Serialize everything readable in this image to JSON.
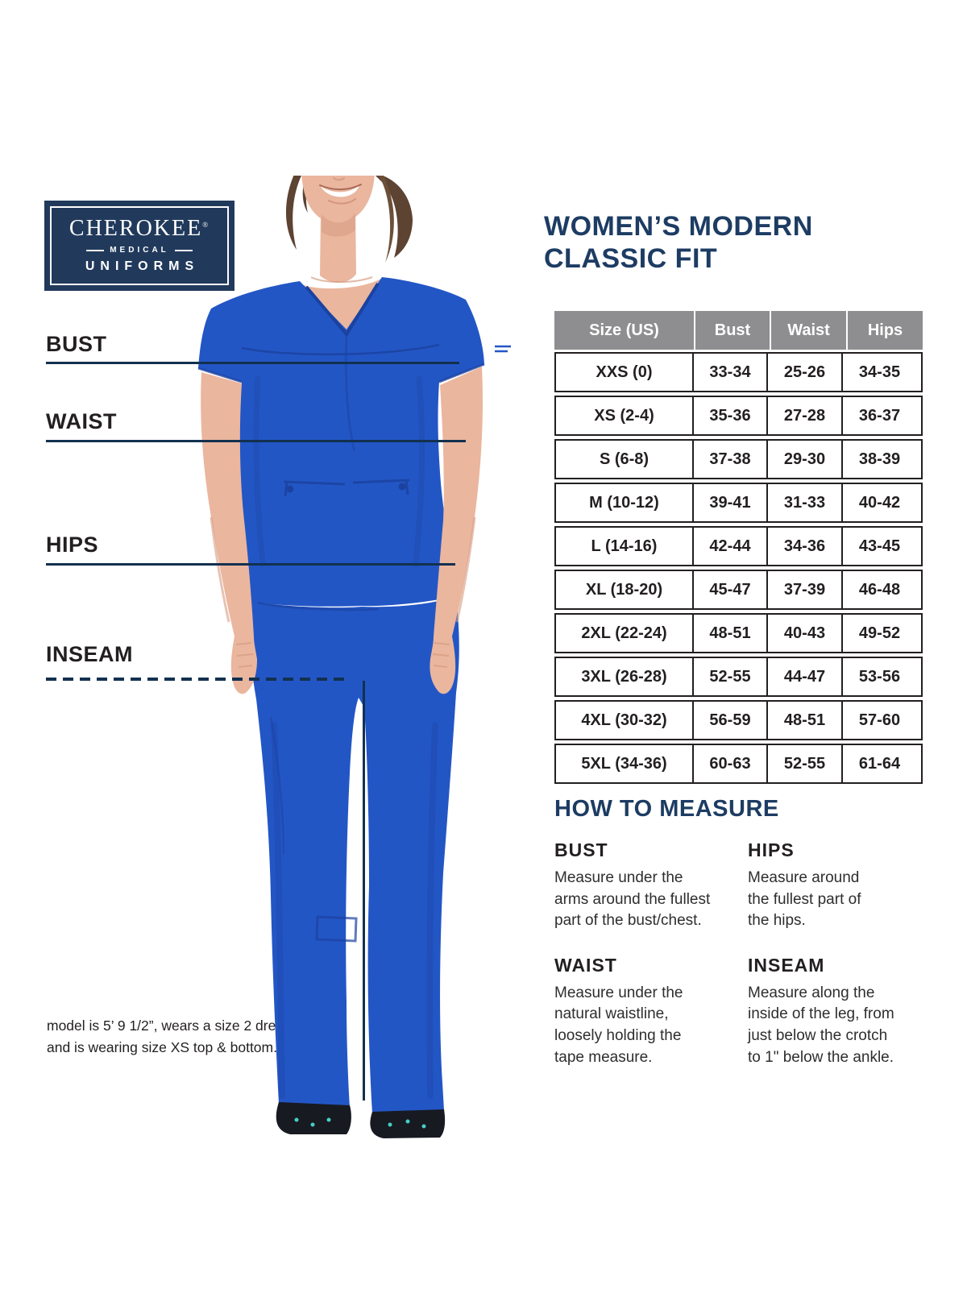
{
  "brand": {
    "name": "CHEROKEE",
    "reg": "®",
    "division": "MEDICAL",
    "product": "UNIFORMS"
  },
  "title": {
    "line1": "WOMEN’S MODERN",
    "line2": "CLASSIC FIT"
  },
  "measurement_labels": {
    "bust": "BUST",
    "waist": "WAIST",
    "hips": "HIPS",
    "inseam": "INSEAM"
  },
  "size_table": {
    "headers": [
      "Size (US)",
      "Bust",
      "Waist",
      "Hips"
    ],
    "rows": [
      [
        "XXS (0)",
        "33-34",
        "25-26",
        "34-35"
      ],
      [
        "XS (2-4)",
        "35-36",
        "27-28",
        "36-37"
      ],
      [
        "S (6-8)",
        "37-38",
        "29-30",
        "38-39"
      ],
      [
        "M (10-12)",
        "39-41",
        "31-33",
        "40-42"
      ],
      [
        "L (14-16)",
        "42-44",
        "34-36",
        "43-45"
      ],
      [
        "XL (18-20)",
        "45-47",
        "37-39",
        "46-48"
      ],
      [
        "2XL (22-24)",
        "48-51",
        "40-43",
        "49-52"
      ],
      [
        "3XL (26-28)",
        "52-55",
        "44-47",
        "53-56"
      ],
      [
        "4XL (30-32)",
        "56-59",
        "48-51",
        "57-60"
      ],
      [
        "5XL (34-36)",
        "60-63",
        "52-55",
        "61-64"
      ]
    ]
  },
  "how_to_measure": {
    "heading": "HOW TO MEASURE",
    "sections": [
      {
        "label": "BUST",
        "text_lines": [
          "Measure under the",
          "arms around the fullest",
          "part of the bust/chest."
        ]
      },
      {
        "label": "HIPS",
        "text_lines": [
          "Measure around",
          "the fullest part of",
          "the hips."
        ]
      },
      {
        "label": "WAIST",
        "text_lines": [
          "Measure under the",
          "natural waistline,",
          "loosely holding the",
          "tape measure."
        ]
      },
      {
        "label": "INSEAM",
        "text_lines": [
          "Measure along the",
          "inside of the leg, from",
          "just below the crotch",
          "to 1\" below the ankle."
        ]
      }
    ]
  },
  "model_note": {
    "line1": "model is 5’ 9 1/2”, wears a size 2 dress",
    "line2": "and is wearing size XS top & bottom."
  },
  "colors": {
    "navy": "#1d3c63",
    "measure_line_navy": "#12314f",
    "royal_blue": "#2356c5",
    "royal_blue_shadow": "#1b429f",
    "table_header_gray": "#8e8e90",
    "table_border": "#231f20",
    "body_text": "#2e2e2e"
  }
}
